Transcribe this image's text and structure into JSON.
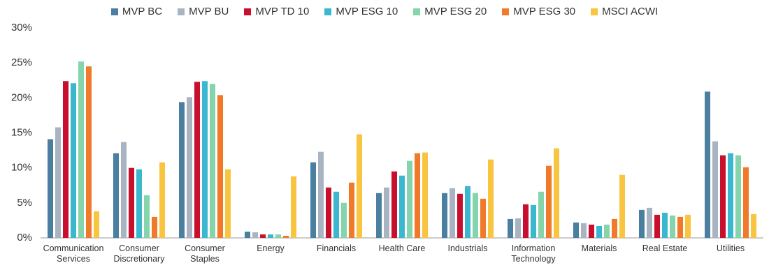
{
  "chart_data": {
    "type": "bar",
    "categories": [
      "Communication Services",
      "Consumer Discretionary",
      "Consumer Staples",
      "Energy",
      "Financials",
      "Health Care",
      "Industrials",
      "Information Technology",
      "Materials",
      "Real Estate",
      "Utilities"
    ],
    "series": [
      {
        "name": "MVP BC",
        "color": "#4a7fa0",
        "values": [
          14.1,
          12.1,
          19.4,
          0.9,
          10.8,
          6.4,
          6.4,
          2.7,
          2.2,
          4.0,
          20.9
        ]
      },
      {
        "name": "MVP BU",
        "color": "#a9b4c2",
        "values": [
          15.8,
          13.7,
          20.1,
          0.8,
          12.3,
          7.2,
          7.1,
          2.8,
          2.1,
          4.3,
          13.8
        ]
      },
      {
        "name": "MVP TD 10",
        "color": "#c8102e",
        "values": [
          22.4,
          10.0,
          22.3,
          0.5,
          7.2,
          9.5,
          6.3,
          4.8,
          1.9,
          3.3,
          11.8
        ]
      },
      {
        "name": "MVP ESG 10",
        "color": "#3bb8d0",
        "values": [
          22.1,
          9.8,
          22.4,
          0.5,
          6.6,
          8.9,
          7.4,
          4.7,
          1.7,
          3.6,
          12.1
        ]
      },
      {
        "name": "MVP ESG 20",
        "color": "#86d4ab",
        "values": [
          25.2,
          6.1,
          22.0,
          0.5,
          5.0,
          11.0,
          6.4,
          6.6,
          1.9,
          3.2,
          11.8
        ]
      },
      {
        "name": "MVP ESG 30",
        "color": "#f07a2a",
        "values": [
          24.5,
          3.0,
          20.4,
          0.3,
          7.9,
          12.1,
          5.6,
          10.3,
          2.7,
          3.0,
          10.1
        ]
      },
      {
        "name": "MSCI ACWI",
        "color": "#f9c440",
        "values": [
          3.8,
          10.8,
          9.8,
          8.8,
          14.8,
          12.2,
          11.2,
          12.8,
          9.0,
          3.3,
          3.4
        ]
      }
    ],
    "ylim": [
      0,
      30
    ],
    "yticks": [
      {
        "value": 0,
        "label": "0%"
      },
      {
        "value": 5,
        "label": "5%"
      },
      {
        "value": 10,
        "label": "10%"
      },
      {
        "value": 15,
        "label": "15%"
      },
      {
        "value": 20,
        "label": "20%"
      },
      {
        "value": 25,
        "label": "25%"
      },
      {
        "value": 30,
        "label": "30%"
      }
    ],
    "grid": false
  }
}
